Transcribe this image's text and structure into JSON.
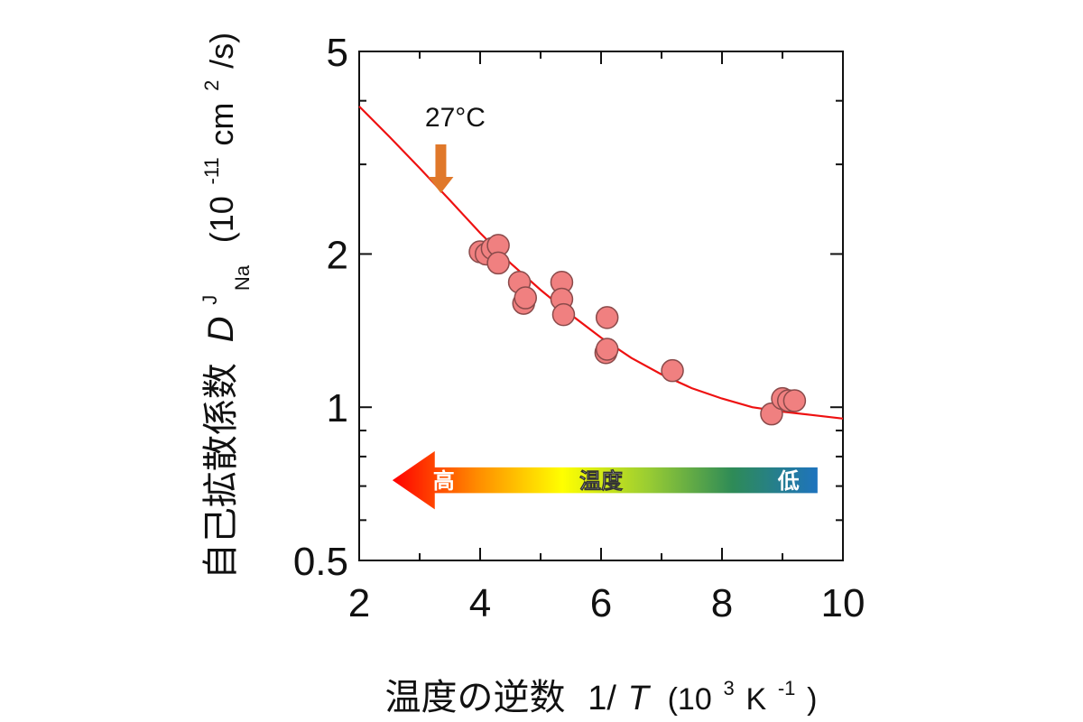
{
  "chart_data": {
    "type": "scatter",
    "xlabel": {
      "main": "温度の逆数",
      "var_prefix": "1/",
      "var_italic": "T",
      "units_open": "(10",
      "units_exp": "3",
      "units_mid": " K",
      "units_exp2": "-1",
      "units_close": ")"
    },
    "ylabel": {
      "main": "自己拡散係数",
      "var_italic": "D",
      "var_sup": "J",
      "var_sub": "Na",
      "units_open": "(10",
      "units_exp": "-11",
      "units_mid": " cm",
      "units_exp2": "2",
      "units_close": "/s)"
    },
    "xlim": [
      2,
      10
    ],
    "ylim": [
      0.5,
      5
    ],
    "yscale": "log",
    "x_ticks": [
      "2",
      "4",
      "6",
      "8",
      "10"
    ],
    "y_ticks": [
      "0.5",
      "1",
      "2",
      "5"
    ],
    "series": [
      {
        "kind": "scatter",
        "color": "#f08080",
        "points": [
          [
            4.0,
            2.02
          ],
          [
            4.1,
            2.0
          ],
          [
            4.2,
            2.05
          ],
          [
            4.3,
            2.08
          ],
          [
            4.3,
            1.92
          ],
          [
            4.65,
            1.76
          ],
          [
            4.72,
            1.6
          ],
          [
            4.75,
            1.64
          ],
          [
            5.35,
            1.76
          ],
          [
            5.35,
            1.63
          ],
          [
            5.38,
            1.52
          ],
          [
            6.1,
            1.5
          ],
          [
            6.08,
            1.28
          ],
          [
            6.1,
            1.3
          ],
          [
            7.18,
            1.18
          ],
          [
            8.82,
            0.97
          ],
          [
            9.0,
            1.04
          ],
          [
            9.1,
            1.03
          ],
          [
            9.2,
            1.03
          ]
        ]
      },
      {
        "kind": "fit",
        "color": "#ee1111",
        "points": [
          [
            2.0,
            3.9
          ],
          [
            2.5,
            3.4
          ],
          [
            3.0,
            2.95
          ],
          [
            3.5,
            2.55
          ],
          [
            4.0,
            2.2
          ],
          [
            4.5,
            1.92
          ],
          [
            5.0,
            1.7
          ],
          [
            5.5,
            1.52
          ],
          [
            6.0,
            1.37
          ],
          [
            6.5,
            1.25
          ],
          [
            7.0,
            1.16
          ],
          [
            7.5,
            1.09
          ],
          [
            8.0,
            1.04
          ],
          [
            8.5,
            1.0
          ],
          [
            9.0,
            0.98
          ],
          [
            9.5,
            0.965
          ],
          [
            10.0,
            0.95
          ]
        ]
      }
    ],
    "annotations": {
      "temp_label": "27°C",
      "temp_arrow_x": 3.35,
      "arrow_label_high": "高",
      "arrow_label_mid": "温度",
      "arrow_label_low": "低"
    },
    "grid": false,
    "colors": {
      "axis": "#111111",
      "marker_fill": "#f08080",
      "marker_edge": "#8a4a4a",
      "fit_line": "#ee1111",
      "temp_arrow": "#e0782a",
      "gradient": [
        "#ff0000",
        "#ff8c00",
        "#ffff00",
        "#9acd32",
        "#2e8b57",
        "#1e73be"
      ]
    }
  }
}
